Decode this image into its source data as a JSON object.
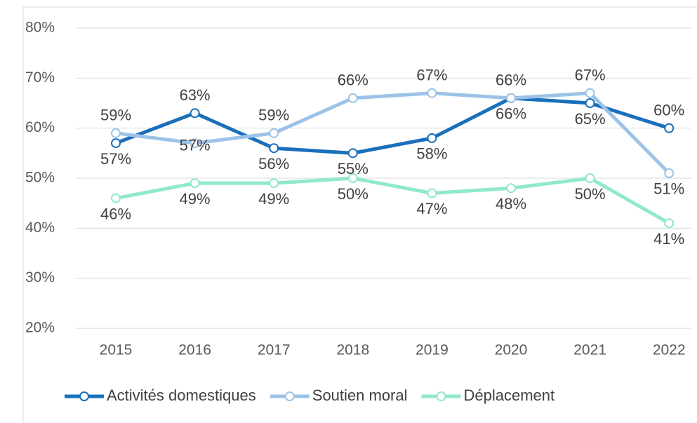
{
  "chart_data": {
    "type": "line",
    "categories": [
      "2015",
      "2016",
      "2017",
      "2018",
      "2019",
      "2020",
      "2021",
      "2022"
    ],
    "series": [
      {
        "name": "Activités domestiques",
        "color": "#1a6fbb",
        "values": [
          57,
          63,
          56,
          55,
          58,
          66,
          65,
          60
        ],
        "value_labels": [
          "57%",
          "63%",
          "56%",
          "55%",
          "58%",
          "66%",
          "65%",
          "60%"
        ]
      },
      {
        "name": "Soutien moral",
        "color": "#9cc3e7",
        "values": [
          59,
          57,
          59,
          66,
          67,
          66,
          67,
          51
        ],
        "value_labels": [
          "59%",
          "57%",
          "59%",
          "66%",
          "67%",
          "66%",
          "67%",
          "51%"
        ]
      },
      {
        "name": "Déplacement",
        "color": "#90e8cf",
        "values": [
          46,
          49,
          49,
          50,
          47,
          48,
          50,
          41
        ],
        "value_labels": [
          "46%",
          "49%",
          "49%",
          "50%",
          "47%",
          "48%",
          "50%",
          "41%"
        ]
      }
    ],
    "ylim": [
      20,
      80
    ],
    "yticks": [
      {
        "value": 20,
        "label": "20%"
      },
      {
        "value": 30,
        "label": "30%"
      },
      {
        "value": 40,
        "label": "40%"
      },
      {
        "value": 50,
        "label": "50%"
      },
      {
        "value": 60,
        "label": "60%"
      },
      {
        "value": 70,
        "label": "70%"
      },
      {
        "value": 80,
        "label": "80%"
      }
    ],
    "grid": true,
    "legend": "bottom"
  }
}
